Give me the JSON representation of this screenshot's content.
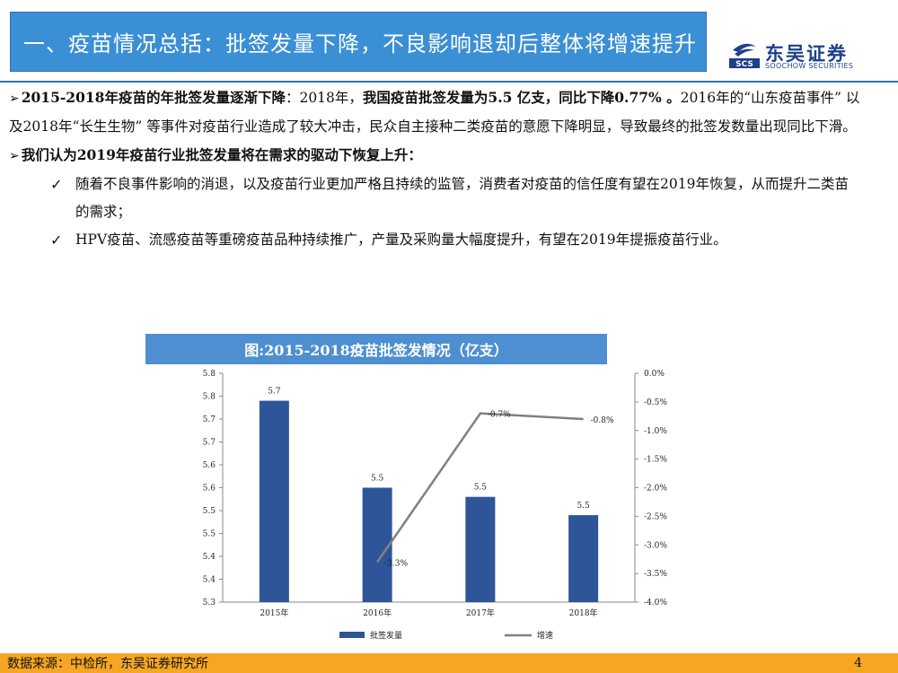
{
  "header": {
    "title": "一、疫苗情况总括：批签发量下降，不良影响退却后整体将增速提升"
  },
  "logo": {
    "mark": "SCS",
    "name": "东吴证券",
    "en": "SOOCHOW SECURITIES"
  },
  "body": {
    "p1_bold1": "2015-2018年疫苗的年批签发量逐渐下降",
    "p1_text1": "：2018年，",
    "p1_bold2": "我国疫苗批签发量为5.5 亿支，同比下降0.77% 。",
    "p1_text2": "2016年的“山东疫苗事件” 以及2018年“长生生物” 等事件对疫苗行业造成了较大冲击，民众自主接种二类疫苗的意愿下降明显，导致最终的批签发数量出现同比下滑。",
    "p2_bold": "我们认为2019年疫苗行业批签发量将在需求的驱动下恢复上升：",
    "check1": "随着不良事件影响的消退，以及疫苗行业更加严格且持续的监管，消费者对疫苗的信任度有望在2019年恢复，从而提升二类苗的需求；",
    "check2": "HPV疫苗、流感疫苗等重磅疫苗品种持续推广，产量及采购量大幅度提升，有望在2019年提振疫苗行业。"
  },
  "chart_title": "图:2015-2018疫苗批签发情况（亿支）",
  "chart_data": {
    "type": "bar",
    "categories": [
      "2015年",
      "2016年",
      "2017年",
      "2018年"
    ],
    "series": [
      {
        "name": "批签发量",
        "kind": "bar",
        "axis": "left",
        "color": "#2e5597",
        "values": [
          5.74,
          5.55,
          5.53,
          5.49
        ],
        "labels": [
          "5.7",
          "5.5",
          "5.5",
          "5.5"
        ]
      },
      {
        "name": "增速",
        "kind": "line",
        "axis": "right",
        "color": "#808080",
        "values": [
          null,
          -3.3,
          -0.7,
          -0.8
        ],
        "labels": [
          "",
          "-3.3%",
          "-0.7%",
          "-0.8%"
        ]
      }
    ],
    "left_axis": {
      "min": 5.3,
      "max": 5.8,
      "ticks": [
        "5.3",
        "5.4",
        "5.4",
        "5.5",
        "5.5",
        "5.6",
        "5.6",
        "5.7",
        "5.7",
        "5.8",
        "5.8"
      ]
    },
    "right_axis": {
      "min": -4.0,
      "max": 0.0,
      "ticks": [
        "-4.0%",
        "-3.5%",
        "-3.0%",
        "-2.5%",
        "-2.0%",
        "-1.5%",
        "-1.0%",
        "-0.5%",
        "0.0%"
      ]
    },
    "legend_position": "bottom"
  },
  "footer": {
    "source": "数据来源：中检所，东吴证券研究所",
    "page": "4"
  }
}
